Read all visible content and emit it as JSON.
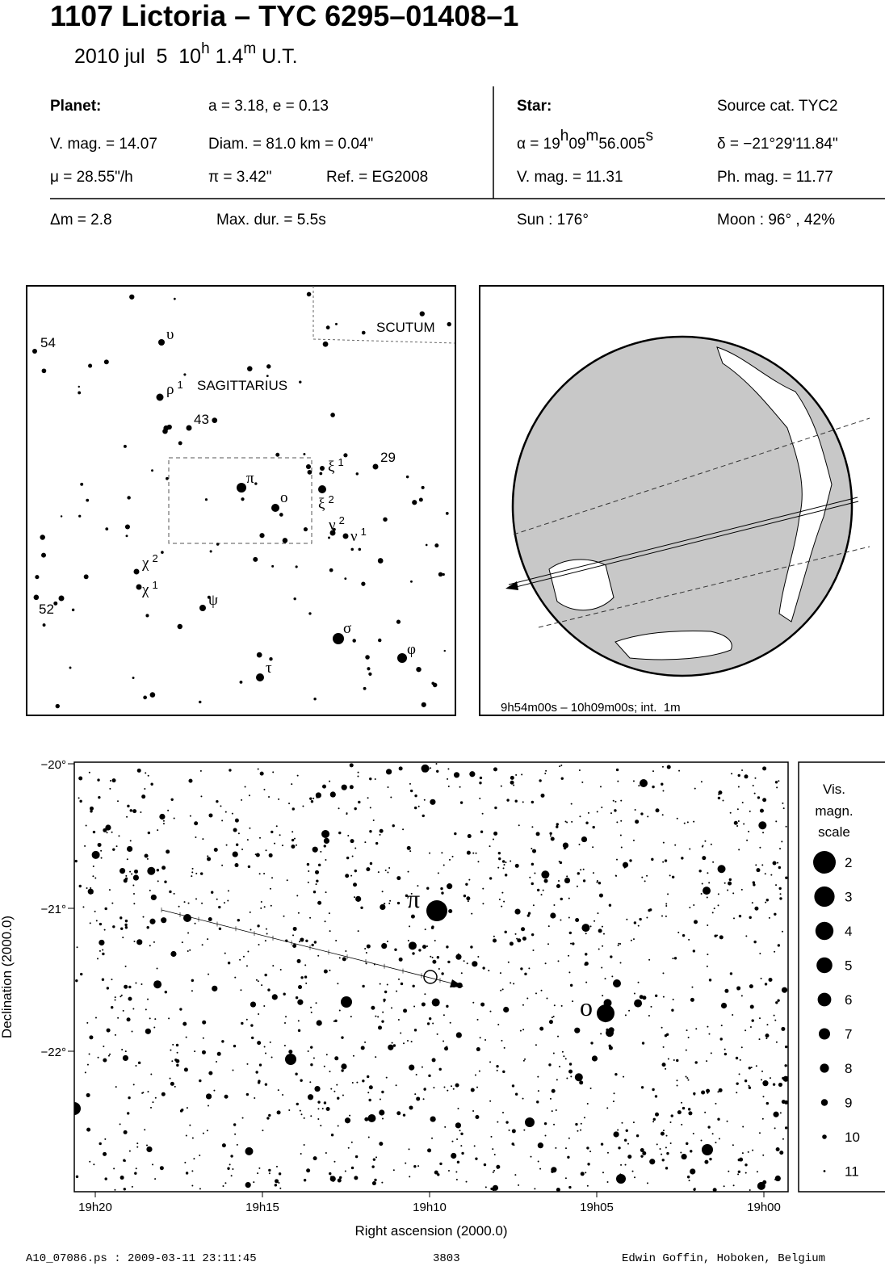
{
  "header": {
    "title": "1107 Lictoria  –  TYC 6295–01408–1",
    "subtitle": {
      "date": "2010 jul  5  10",
      "h": "h",
      "minutes": " 1.4",
      "m": "m",
      "zone": " U.T."
    }
  },
  "info": {
    "planet_label": "Planet:",
    "orbit": "a = 3.18, e = 0.13",
    "planet_mag": "V. mag. = 14.07",
    "diameter": "Diam. = 81.0 km = 0.04\"",
    "motion": "μ =  28.55\"/h",
    "parallax": "π =  3.42\"",
    "reference": "Ref. = EG2008",
    "star_label": "Star:",
    "source": "Source cat.  TYC2",
    "ra": {
      "prefix": "α = 19",
      "h": "h",
      "min": "09",
      "m": "m",
      "sec": "56.005",
      "s": "s"
    },
    "dec": "δ = −21°29'11.84\"",
    "star_mag": "V. mag. = 11.31",
    "photo_mag": "Ph. mag. = 11.77",
    "delta_mag": "Δm = 2.8",
    "max_duration": "Max. dur. = 5.5s",
    "sun": "Sun : 176°",
    "moon": "Moon :  96° , 42%"
  },
  "finder": {
    "constellations": [
      "SAGITTARIUS",
      "SCUTUM"
    ],
    "numbers": [
      "54",
      "43",
      "29",
      "52"
    ],
    "stars": [
      {
        "letter": "υ"
      },
      {
        "letter": "ρ",
        "index": "1"
      },
      {
        "letter": "π"
      },
      {
        "letter": "o"
      },
      {
        "letter": "ξ",
        "index": "1"
      },
      {
        "letter": "ξ",
        "index": "2"
      },
      {
        "letter": "ν",
        "index": "2"
      },
      {
        "letter": "ν",
        "index": "1"
      },
      {
        "letter": "χ",
        "index": "2"
      },
      {
        "letter": "χ",
        "index": "1"
      },
      {
        "letter": "ψ"
      },
      {
        "letter": "σ"
      },
      {
        "letter": "φ"
      },
      {
        "letter": "τ"
      }
    ]
  },
  "globe": {
    "caption": "9h54m00s – 10h09m00s; int.  1m"
  },
  "star_chart": {
    "x_label": "Right ascension (2000.0)",
    "y_label": "Declination (2000.0)",
    "x_ticks": [
      "19h20",
      "19h15",
      "19h10",
      "19h05",
      "19h00"
    ],
    "y_ticks": [
      "−20°",
      "−21°",
      "−22°"
    ],
    "pi_label": "π",
    "omicron_label": "o"
  },
  "scale": {
    "title": [
      "Vis.",
      "magn.",
      "scale"
    ],
    "magnitudes": [
      2,
      3,
      4,
      5,
      6,
      7,
      8,
      9,
      10,
      11
    ]
  },
  "footer": {
    "file": "A10_07086.ps : 2009-03-11 23:11:45",
    "number": "3803",
    "author": "Edwin Goffin, Hoboken, Belgium"
  }
}
